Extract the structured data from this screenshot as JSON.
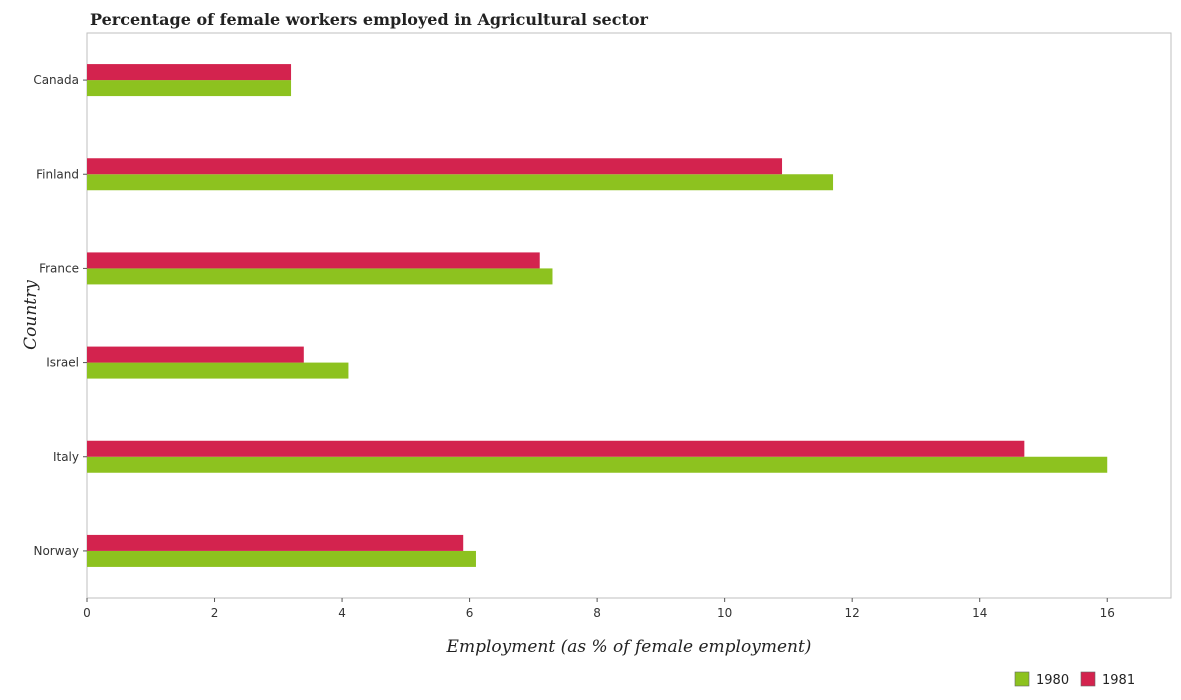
{
  "chart_data": {
    "type": "bar",
    "orientation": "horizontal",
    "title": "Percentage of female workers employed in Agricultural sector",
    "xlabel": "Employment (as % of female employment)",
    "ylabel": "Country",
    "categories": [
      "Canada",
      "Finland",
      "France",
      "Israel",
      "Italy",
      "Norway"
    ],
    "series": [
      {
        "name": "1980",
        "values": [
          3.2,
          11.7,
          7.3,
          4.1,
          16.0,
          6.1
        ],
        "color": "#8dc21f"
      },
      {
        "name": "1981",
        "values": [
          3.2,
          10.9,
          7.1,
          3.4,
          14.7,
          5.9
        ],
        "color": "#d3234e"
      }
    ],
    "xlim": [
      0,
      17
    ],
    "xticks": [
      0,
      2,
      4,
      6,
      8,
      10,
      12,
      14,
      16
    ],
    "xtick_labels": [
      "0",
      "2",
      "4",
      "6",
      "8",
      "10",
      "12",
      "14",
      "16"
    ],
    "grid": false,
    "legend_position": "bottom-right"
  }
}
